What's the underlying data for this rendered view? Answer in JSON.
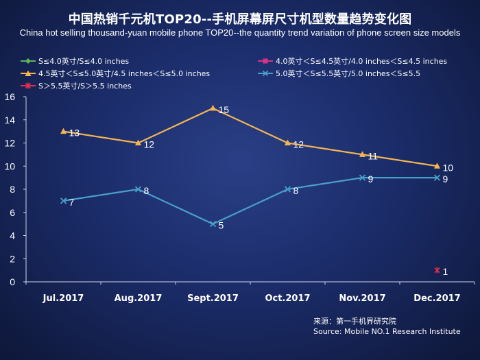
{
  "chart_data": {
    "type": "line",
    "title": "中国热销千元机TOP20--手机屏幕屏尺寸机型数量趋势变化图",
    "subtitle": "China hot selling thousand-yuan mobile phone TOP20--the quantity trend variation of phone screen size models",
    "categories": [
      "Jul.2017",
      "Aug.2017",
      "Sept.2017",
      "Oct.2017",
      "Nov.2017",
      "Dec.2017"
    ],
    "ylim": [
      0,
      16
    ],
    "yticks": [
      0,
      2,
      4,
      6,
      8,
      10,
      12,
      14,
      16
    ],
    "grid": false,
    "legend_position": "top",
    "series": [
      {
        "name": "S≤4.0英寸/S≤4.0 inches",
        "color": "#5cb85c",
        "marker": "diamond",
        "values": [
          null,
          null,
          null,
          null,
          null,
          null
        ]
      },
      {
        "name": "4.0英寸＜S≤4.5英寸/4.0 inches＜S≤4.5 inches",
        "color": "#d63384",
        "marker": "square",
        "values": [
          null,
          null,
          null,
          null,
          null,
          null
        ]
      },
      {
        "name": "4.5英寸＜S≤5.0英寸/4.5 inches＜S≤5.0 inches",
        "color": "#f4b552",
        "marker": "triangle",
        "values": [
          13,
          12,
          15,
          12,
          11,
          10
        ]
      },
      {
        "name": "5.0英寸＜S≤5.5英寸/5.0 inches＜S≤5.5",
        "color": "#4a9fc8",
        "marker": "x",
        "values": [
          7,
          8,
          5,
          8,
          9,
          9
        ]
      },
      {
        "name": "S＞5.5英寸/S＞5.5 inches",
        "color": "#e0304a",
        "marker": "star",
        "values": [
          null,
          null,
          null,
          null,
          null,
          1
        ]
      }
    ],
    "source_cn": "来源：第一手机界研究院",
    "source_en": "Source: Mobile NO.1 Research Institute"
  }
}
